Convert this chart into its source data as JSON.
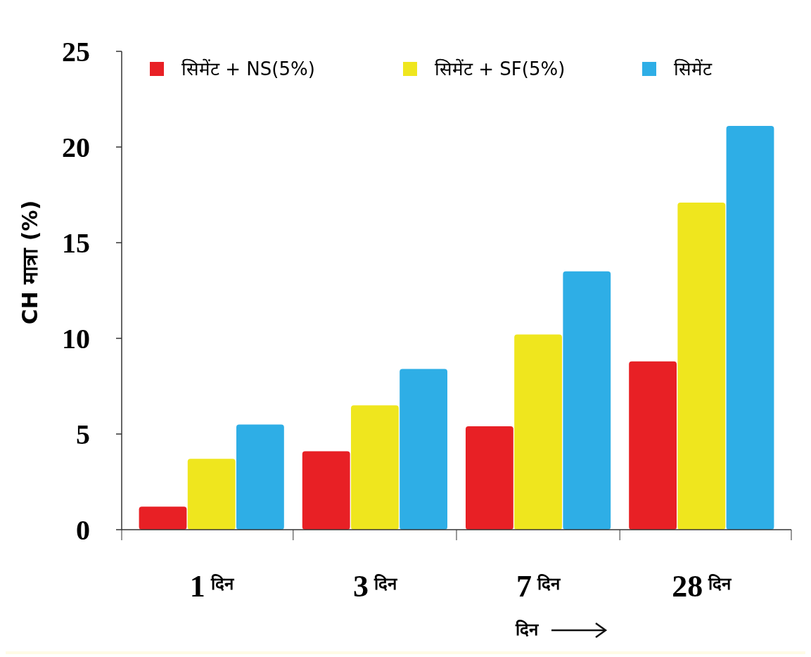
{
  "chart_data": {
    "type": "bar",
    "categories": [
      "1 दिन",
      "3 दिन",
      "7 दिन",
      "28 दिन"
    ],
    "series": [
      {
        "name": "सिमेंट + NS(5%)",
        "color": "#e82025",
        "values": [
          1.2,
          4.1,
          5.4,
          8.8
        ]
      },
      {
        "name": "सिमेंट + SF(5%)",
        "color": "#efe61e",
        "values": [
          3.7,
          6.5,
          10.2,
          17.1
        ]
      },
      {
        "name": "सिमेंट",
        "color": "#2eaee6",
        "values": [
          5.5,
          8.4,
          13.5,
          21.1
        ]
      }
    ],
    "ylabel": "CH मात्रा (%)",
    "xlabel": "दिन",
    "ylim": [
      0,
      25
    ],
    "yticks": [
      0,
      5,
      10,
      15,
      20,
      25
    ],
    "grid": false,
    "legend": "top"
  }
}
